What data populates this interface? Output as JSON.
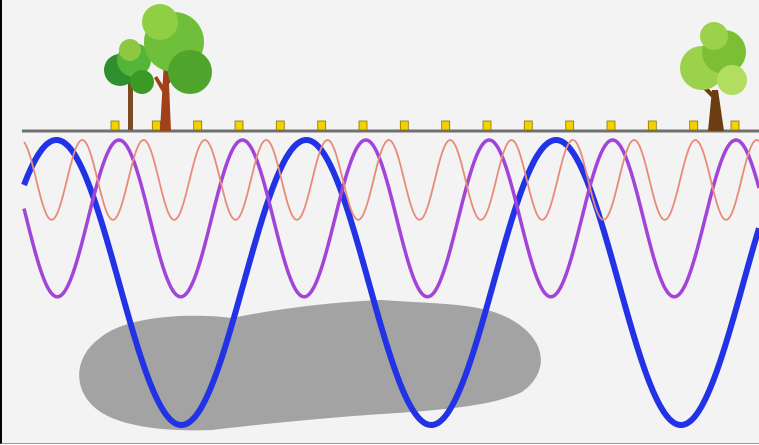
{
  "figure": {
    "background_color": "#f3f3f3",
    "frame_color": "#000000"
  },
  "ground": {
    "color": "#707070"
  },
  "geophones": {
    "count": 16,
    "color": "#f2d200",
    "outline_color": "#8a7400"
  },
  "trees": [
    {
      "icon": "tree-icon",
      "style": "cluster",
      "foliage": [
        "#2f8f2f",
        "#55b43a",
        "#8cc840",
        "#3a9a25"
      ],
      "trunk": "#7a4b25"
    },
    {
      "icon": "tree-icon",
      "style": "tall",
      "foliage": [
        "#6fbf3a",
        "#4fa52c",
        "#8fcf44"
      ],
      "trunk": "#a0411a"
    },
    {
      "icon": "tree-icon",
      "style": "round",
      "foliage": [
        "#9cd24b",
        "#7cbf35",
        "#b2dd5e"
      ],
      "trunk": "#6b3d12"
    }
  ],
  "waves": [
    {
      "name": "",
      "color": "#2233e6",
      "amplitude": 1.0,
      "period_fraction": 0.33,
      "stroke": "bold"
    },
    {
      "name": "",
      "color": "#a244d8",
      "amplitude": 0.55,
      "period_fraction": 0.163,
      "stroke": "medium"
    },
    {
      "name": "",
      "color": "#e88a7a",
      "amplitude": 0.28,
      "period_fraction": 0.081,
      "stroke": "thin"
    }
  ],
  "subsurface_body": {
    "color": "#a3a3a3"
  }
}
